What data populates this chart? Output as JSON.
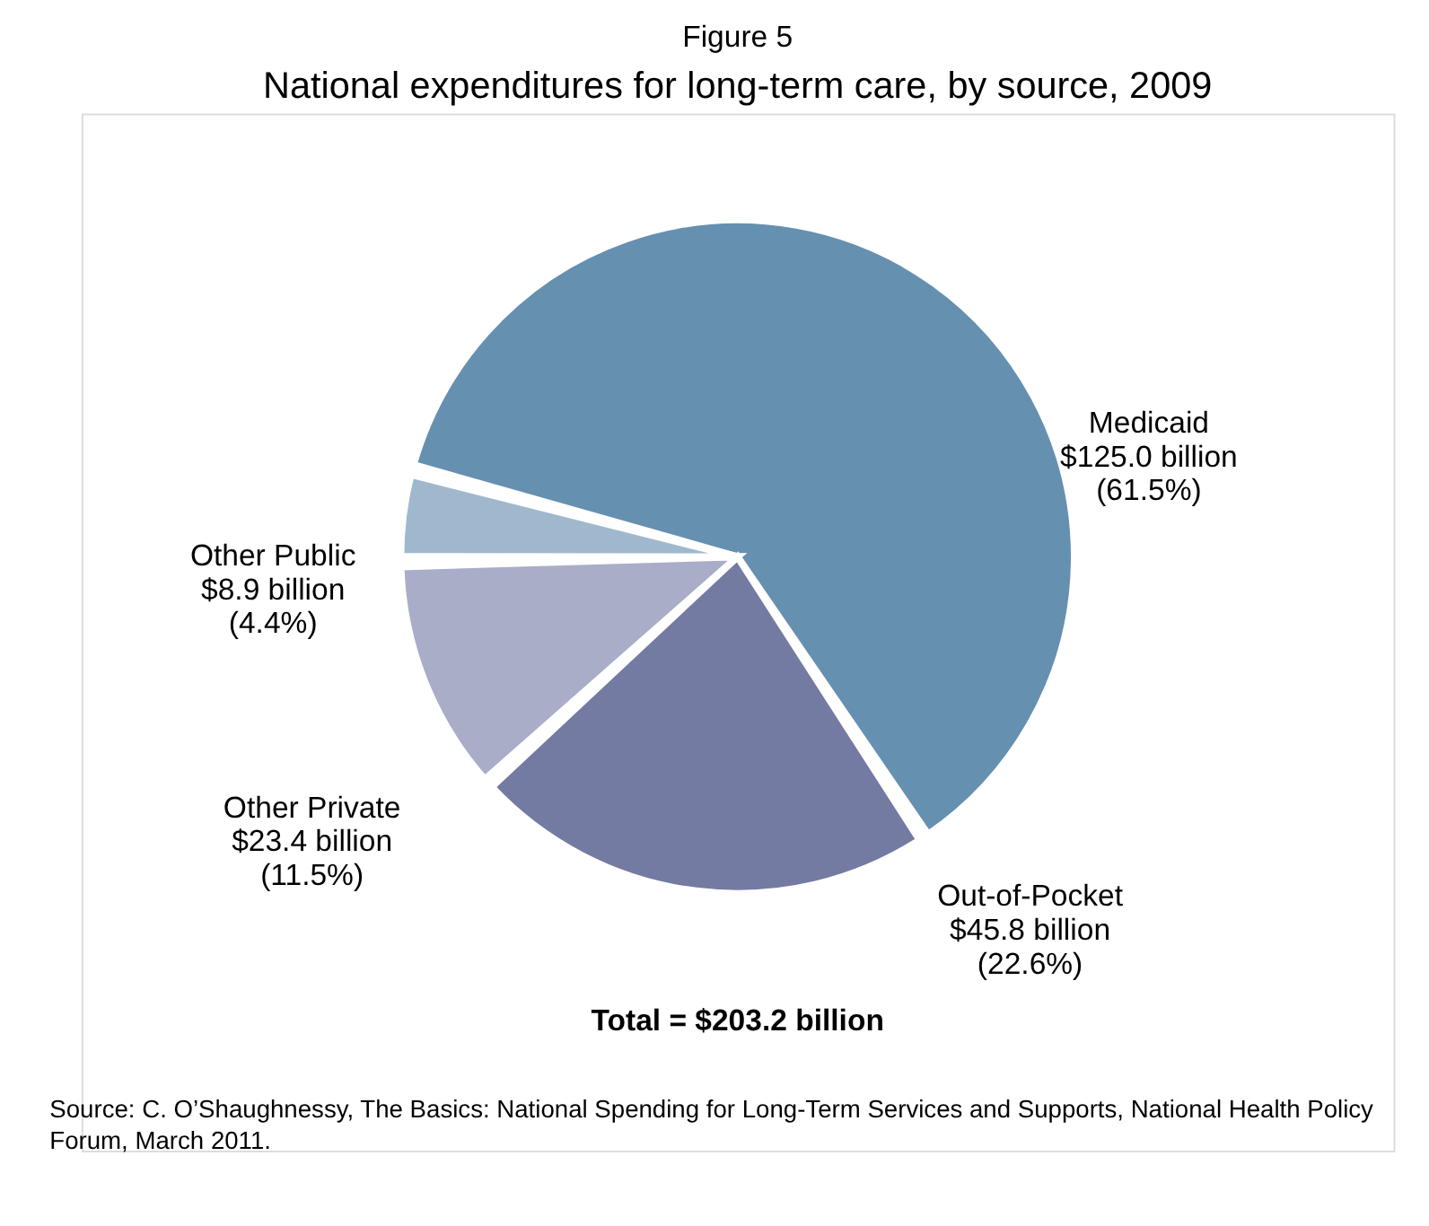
{
  "chart_data": {
    "type": "pie",
    "title": "Figure 5",
    "subtitle": "National expenditures for long-term care, by source, 2009",
    "categories": [
      "Medicaid",
      "Out-of-Pocket",
      "Other Private",
      "Other Public"
    ],
    "values": [
      61.5,
      22.6,
      11.5,
      4.4
    ],
    "colors": [
      "#6690b0",
      "#737ba3",
      "#a9adc8",
      "#9fb8ce"
    ],
    "value_labels": [
      "$125.0 billion\n(61.5%)",
      "$45.8 billion\n(22.6%)",
      "$23.4 billion\n(11.5%)",
      "$8.9 billion\n(4.4%)"
    ],
    "annotations": [
      "Total =  $203.2  billion",
      "Source:  C. O’Shaughnessy, The Basics: National Spending for Long-Term Services and Supports, National Health Policy Forum, March 2011."
    ],
    "legend": false
  }
}
